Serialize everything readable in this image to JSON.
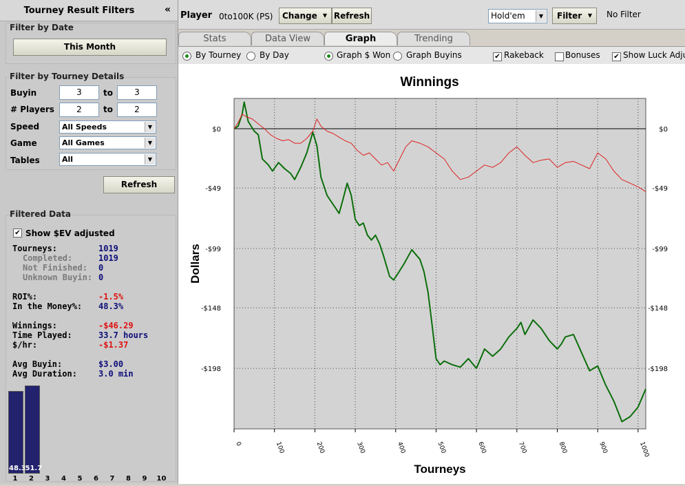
{
  "left_panel": {
    "title": "Tourney Result Filters",
    "collapse_glyph": "«",
    "filter_by_date": {
      "heading": "Filter by Date",
      "button": "This Month"
    },
    "filter_by_details": {
      "heading": "Filter by Tourney Details",
      "buyin_label": "Buyin",
      "buyin_from": "3",
      "buyin_to": "3",
      "players_label": "# Players",
      "players_from": "2",
      "players_to": "2",
      "to_label": "to",
      "speed_label": "Speed",
      "speed_value": "All Speeds",
      "game_label": "Game",
      "game_value": "All Games",
      "tables_label": "Tables",
      "tables_value": "All",
      "refresh_button": "Refresh"
    },
    "filtered_data": {
      "heading": "Filtered Data",
      "show_ev_label": "Show $EV adjusted",
      "show_ev_checked": true,
      "tourneys_label": "Tourneys:",
      "tourneys_value": "1019",
      "completed_label": "Completed:",
      "completed_value": "1019",
      "not_finished_label": "Not Finished:",
      "not_finished_value": "0",
      "unknown_buyin_label": "Unknown Buyin:",
      "unknown_buyin_value": "0",
      "roi_label": "ROI%:",
      "roi_value": "-1.5%",
      "itm_label": "In the Money%:",
      "itm_value": "48.3%",
      "winnings_label": "Winnings:",
      "winnings_value": "-$46.29",
      "time_label": "Time Played:",
      "time_value": "33.7 hours",
      "per_hour_label": "$/hr:",
      "per_hour_value": "-$1.37",
      "avg_buyin_label": "Avg Buyin:",
      "avg_buyin_value": "$3.00",
      "avg_duration_label": "Avg Duration:",
      "avg_duration_value": "3.0 min"
    },
    "finish_bars": {
      "positions": [
        "1",
        "2",
        "3",
        "4",
        "5",
        "6",
        "7",
        "8",
        "9",
        "10"
      ],
      "values": [
        48.3,
        51.7
      ],
      "value_labels": [
        "48.3",
        "51.7"
      ]
    }
  },
  "toolbar": {
    "player_label": "Player",
    "player_name": "0to100K (PS)",
    "change_button": "Change",
    "refresh_button": "Refresh",
    "game_select": "Hold'em",
    "filter_button": "Filter",
    "filter_status": "No Filter"
  },
  "tabs": [
    {
      "label": "Stats",
      "active": false
    },
    {
      "label": "Data View",
      "active": false
    },
    {
      "label": "Graph",
      "active": true
    },
    {
      "label": "Trending",
      "active": false
    }
  ],
  "graph_options": {
    "by_tourney": "By Tourney",
    "by_tourney_selected": true,
    "by_day": "By Day",
    "by_day_selected": false,
    "graph_won": "Graph $ Won",
    "graph_won_selected": true,
    "graph_buyins": "Graph Buyins",
    "graph_buyins_selected": false,
    "rakeback": "Rakeback",
    "rakeback_checked": true,
    "bonuses": "Bonuses",
    "bonuses_checked": false,
    "show_luck": "Show Luck Adju",
    "show_luck_checked": true
  },
  "colors": {
    "winnings_line": "#0a6e0a",
    "luck_line": "#e02020",
    "plot_bg": "#d3d3d3",
    "bar_fill": "#22226e"
  },
  "chart_data": {
    "type": "line",
    "title": "Winnings",
    "xlabel": "Tourneys",
    "ylabel": "Dollars",
    "xlim": [
      0,
      1019
    ],
    "ylim": [
      -248,
      25
    ],
    "x_ticks": [
      0,
      100,
      200,
      300,
      400,
      500,
      600,
      700,
      800,
      900,
      1000
    ],
    "y_ticks": [
      0,
      -49,
      -99,
      -148,
      -198
    ],
    "y_tick_labels": [
      "$0",
      "-$49",
      "-$99",
      "-$148",
      "-$198"
    ],
    "grid": true,
    "legend": "none",
    "series": [
      {
        "color": "#0a6e0a",
        "x": [
          0,
          10,
          20,
          25,
          35,
          50,
          60,
          70,
          85,
          95,
          110,
          125,
          140,
          150,
          165,
          180,
          195,
          205,
          215,
          230,
          240,
          250,
          260,
          270,
          280,
          290,
          300,
          310,
          320,
          330,
          340,
          350,
          360,
          370,
          385,
          395,
          405,
          420,
          440,
          460,
          470,
          480,
          490,
          500,
          510,
          520,
          540,
          560,
          580,
          600,
          620,
          640,
          660,
          680,
          700,
          710,
          720,
          740,
          760,
          780,
          800,
          810,
          820,
          840,
          860,
          880,
          900,
          920,
          940,
          960,
          980,
          1000,
          1019
        ],
        "y": [
          0,
          2,
          12,
          22,
          6,
          -2,
          -5,
          -25,
          -30,
          -35,
          -28,
          -33,
          -37,
          -42,
          -32,
          -20,
          -3,
          -14,
          -40,
          -55,
          -60,
          -65,
          -70,
          -58,
          -45,
          -55,
          -75,
          -80,
          -78,
          -88,
          -92,
          -88,
          -95,
          -105,
          -122,
          -125,
          -120,
          -112,
          -100,
          -108,
          -118,
          -135,
          -162,
          -190,
          -195,
          -192,
          -195,
          -197,
          -190,
          -198,
          -182,
          -188,
          -182,
          -172,
          -165,
          -160,
          -170,
          -158,
          -165,
          -175,
          -182,
          -178,
          -172,
          -170,
          -185,
          -200,
          -196,
          -212,
          -225,
          -242,
          -238,
          -230,
          -215
        ]
      },
      {
        "color": "#e02020",
        "x": [
          0,
          10,
          20,
          30,
          45,
          60,
          75,
          90,
          105,
          120,
          135,
          150,
          165,
          180,
          195,
          205,
          215,
          230,
          245,
          260,
          275,
          290,
          305,
          320,
          335,
          350,
          365,
          380,
          395,
          410,
          425,
          440,
          460,
          480,
          500,
          520,
          540,
          560,
          580,
          600,
          620,
          640,
          660,
          680,
          700,
          720,
          740,
          760,
          780,
          800,
          820,
          840,
          860,
          880,
          900,
          920,
          940,
          960,
          980,
          1000,
          1019
        ],
        "y": [
          0,
          5,
          12,
          10,
          8,
          4,
          0,
          -5,
          -8,
          -10,
          -9,
          -12,
          -12,
          -8,
          -2,
          8,
          2,
          -2,
          -4,
          -7,
          -10,
          -12,
          -18,
          -22,
          -20,
          -25,
          -30,
          -28,
          -35,
          -25,
          -15,
          -10,
          -12,
          -15,
          -20,
          -25,
          -35,
          -42,
          -40,
          -35,
          -30,
          -32,
          -28,
          -20,
          -15,
          -22,
          -28,
          -26,
          -25,
          -32,
          -28,
          -27,
          -30,
          -33,
          -20,
          -25,
          -35,
          -42,
          -45,
          -48,
          -52
        ]
      }
    ]
  }
}
